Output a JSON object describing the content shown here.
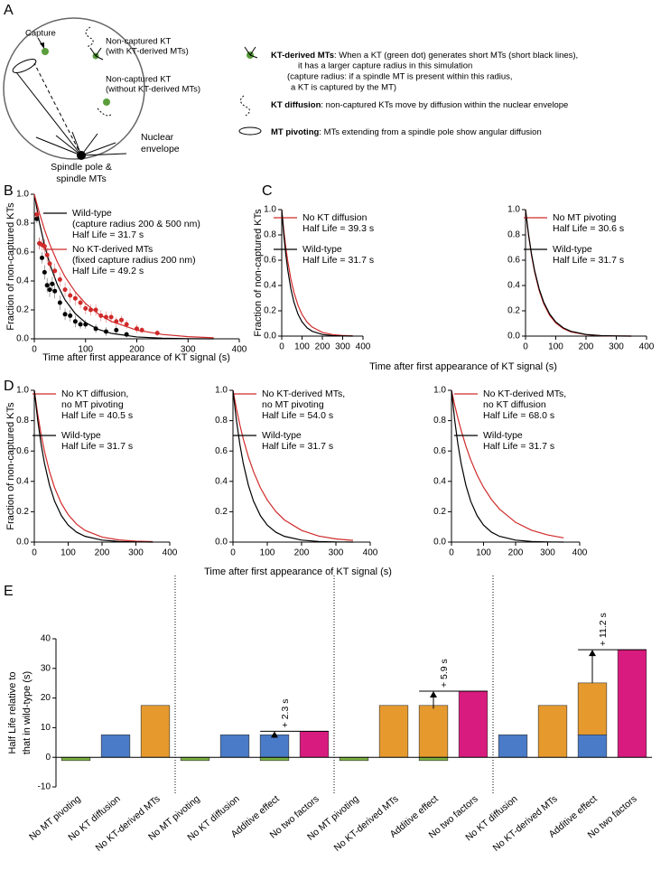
{
  "diagram": {
    "panel": "A",
    "capture": "Capture",
    "kt_with": [
      "Non-captured KT",
      "(with KT-derived MTs)"
    ],
    "kt_without": [
      "Non-captured KT",
      "(without KT-derived MTs)"
    ],
    "envelope": [
      "Nuclear",
      "envelope"
    ],
    "pole": [
      "Spindle pole &",
      "spindle MTs"
    ],
    "legend": [
      {
        "term": "KT-derived MTs",
        "lines": [
          ": When a KT (green dot) generates short MTs (short black lines),",
          "it has a larger capture radius in this simulation",
          "(capture radius: if a spindle MT is present within this radius,",
          "a KT is captured by the MT)"
        ]
      },
      {
        "term": "KT diffusion",
        "lines": [
          ": non-captured KTs move by diffusion within the nuclear envelope"
        ]
      },
      {
        "term": "MT pivoting",
        "lines": [
          ": MTs extending from a spindle pole show angular diffusion"
        ]
      }
    ]
  },
  "chart_data": [
    {
      "type": "line",
      "panel": "B",
      "xlabel": "Time after first appearance of KT signal (s)",
      "ylabel": "Fraction of non-captured KTs",
      "xlim": [
        0,
        400
      ],
      "ylim": [
        0,
        1
      ],
      "xticks": [
        0,
        100,
        200,
        300,
        400
      ],
      "yticks": [
        {
          "value": 0,
          "label": "0.0"
        },
        0.2,
        0.4,
        0.6,
        0.8,
        {
          "value": 1,
          "label": "1.0"
        }
      ],
      "x": [
        0,
        10,
        20,
        30,
        45,
        60,
        80,
        100,
        125,
        150,
        200,
        250,
        300,
        350
      ],
      "series": [
        {
          "name": "Wild-type",
          "detail": "(capture radius 200 & 500 nm)",
          "label": "Half Life = 31.7 s",
          "color": "#000000",
          "values": [
            1,
            0.804,
            0.646,
            0.519,
            0.374,
            0.269,
            0.174,
            0.112,
            0.065,
            0.038,
            0.013,
            0.004,
            0.001,
            0
          ],
          "points": {
            "x": [
              5,
              10,
              15,
              20,
              25,
              30,
              35,
              40,
              50,
              60,
              70,
              80,
              90,
              100,
              120,
              140,
              160,
              180
            ],
            "values": [
              0.83,
              0.66,
              0.56,
              0.46,
              0.37,
              0.34,
              0.38,
              0.33,
              0.25,
              0.17,
              0.16,
              0.12,
              0.1,
              0.1,
              0.07,
              0.05,
              0.06,
              0.03
            ],
            "errors": [
              0.03,
              0.04,
              0.04,
              0.05,
              0.05,
              0.05,
              0.05,
              0.05,
              0.05,
              0.04,
              0.04,
              0.04,
              0.03,
              0.03,
              0.03,
              0.03,
              0.03,
              0.02
            ]
          }
        },
        {
          "name": "No KT-derived MTs",
          "detail": "(fixed capture radius 200 nm)",
          "label": "Half Life = 49.2 s",
          "color": "#d02a2a",
          "values": [
            1,
            0.869,
            0.754,
            0.655,
            0.531,
            0.429,
            0.324,
            0.244,
            0.172,
            0.121,
            0.06,
            0.03,
            0.015,
            0.007
          ],
          "points": {
            "x": [
              5,
              10,
              15,
              20,
              25,
              30,
              40,
              50,
              60,
              70,
              80,
              90,
              100,
              110,
              120,
              130,
              140,
              150,
              160,
              170,
              180,
              200,
              210,
              240
            ],
            "values": [
              0.86,
              0.66,
              0.65,
              0.64,
              0.58,
              0.52,
              0.47,
              0.41,
              0.34,
              0.3,
              0.28,
              0.25,
              0.21,
              0.2,
              0.2,
              0.16,
              0.15,
              0.15,
              0.12,
              0.13,
              0.1,
              0.07,
              0.06,
              0.04
            ],
            "errors": [
              0.03,
              0.04,
              0.04,
              0.05,
              0.05,
              0.05,
              0.05,
              0.05,
              0.05,
              0.05,
              0.05,
              0.04,
              0.04,
              0.04,
              0.04,
              0.04,
              0.04,
              0.04,
              0.03,
              0.03,
              0.03,
              0.03,
              0.02,
              0.02
            ]
          }
        }
      ]
    },
    {
      "type": "line",
      "panel": "C",
      "xlabel": "Time after first appearance of KT signal (s)",
      "ylabel": "Fraction of non-captured KTs",
      "xlim": [
        0,
        400
      ],
      "ylim": [
        0,
        1
      ],
      "xticks": [
        0,
        100,
        200,
        300,
        400
      ],
      "yticks": [
        {
          "value": 0,
          "label": "0.0"
        },
        0.2,
        0.4,
        0.6,
        0.8,
        {
          "value": 1,
          "label": "1.0"
        }
      ],
      "x": [
        0,
        10,
        20,
        30,
        45,
        60,
        80,
        100,
        125,
        150,
        200,
        250,
        300,
        350
      ],
      "series": [
        {
          "name": "No KT diffusion",
          "label": "Half Life = 39.3 s",
          "color": "#d02a2a",
          "values": [
            1,
            0.838,
            0.703,
            0.589,
            0.452,
            0.347,
            0.244,
            0.171,
            0.11,
            0.071,
            0.029,
            0.012,
            0.005,
            0.002
          ]
        },
        {
          "name": "Wild-type",
          "label": "Half Life = 31.7 s",
          "color": "#000000",
          "values": [
            1,
            0.804,
            0.646,
            0.519,
            0.374,
            0.269,
            0.174,
            0.112,
            0.065,
            0.038,
            0.013,
            0.004,
            0.001,
            0
          ]
        }
      ]
    },
    {
      "type": "line",
      "xlim": [
        0,
        400
      ],
      "ylim": [
        0,
        1
      ],
      "xticks": [
        0,
        100,
        200,
        300,
        400
      ],
      "yticks": [
        {
          "value": 0,
          "label": "0.0"
        },
        0.2,
        0.4,
        0.6,
        0.8,
        {
          "value": 1,
          "label": "1.0"
        }
      ],
      "x": [
        0,
        10,
        20,
        30,
        45,
        60,
        80,
        100,
        125,
        150,
        200,
        250,
        300,
        350
      ],
      "series": [
        {
          "name": "No MT pivoting",
          "label": "Half Life = 30.6 s",
          "color": "#d02a2a",
          "values": [
            1,
            0.797,
            0.636,
            0.507,
            0.361,
            0.257,
            0.163,
            0.104,
            0.059,
            0.033,
            0.011,
            0.003,
            0.001,
            0
          ]
        },
        {
          "name": "Wild-type",
          "label": "Half Life = 31.7 s",
          "color": "#000000",
          "values": [
            1,
            0.804,
            0.646,
            0.519,
            0.374,
            0.269,
            0.174,
            0.112,
            0.065,
            0.038,
            0.013,
            0.004,
            0.001,
            0
          ]
        }
      ]
    },
    {
      "type": "line",
      "panel": "D",
      "xlabel": "Time after first appearance of KT signal (s)",
      "ylabel": "Fraction of non-captured KTs",
      "xlim": [
        0,
        400
      ],
      "ylim": [
        0,
        1
      ],
      "xticks": [
        0,
        100,
        200,
        300,
        400
      ],
      "yticks": [
        {
          "value": 0,
          "label": "0.0"
        },
        0.2,
        0.4,
        0.6,
        0.8,
        {
          "value": 1,
          "label": "1.0"
        }
      ],
      "x": [
        0,
        10,
        20,
        30,
        45,
        60,
        80,
        100,
        125,
        150,
        200,
        250,
        300,
        350
      ],
      "series": [
        {
          "name": "No KT diffusion,",
          "detail": "no MT pivoting",
          "label": "Half Life = 40.5 s",
          "color": "#d02a2a",
          "values": [
            1,
            0.843,
            0.71,
            0.598,
            0.463,
            0.358,
            0.254,
            0.181,
            0.118,
            0.077,
            0.033,
            0.014,
            0.006,
            0.003
          ]
        },
        {
          "name": "Wild-type",
          "label": "Half Life = 31.7 s",
          "color": "#000000",
          "values": [
            1,
            0.804,
            0.646,
            0.519,
            0.374,
            0.269,
            0.174,
            0.112,
            0.065,
            0.038,
            0.013,
            0.004,
            0.001,
            0
          ]
        }
      ]
    },
    {
      "type": "line",
      "xlim": [
        0,
        400
      ],
      "ylim": [
        0,
        1
      ],
      "xticks": [
        0,
        100,
        200,
        300,
        400
      ],
      "yticks": [
        {
          "value": 0,
          "label": "0.0"
        },
        0.2,
        0.4,
        0.6,
        0.8,
        {
          "value": 1,
          "label": "1.0"
        }
      ],
      "x": [
        0,
        10,
        20,
        30,
        45,
        60,
        80,
        100,
        125,
        150,
        200,
        250,
        300,
        350
      ],
      "series": [
        {
          "name": "No KT-derived MTs,",
          "detail": "no MT pivoting",
          "label": "Half Life = 54.0 s",
          "color": "#d02a2a",
          "values": [
            1,
            0.88,
            0.774,
            0.68,
            0.561,
            0.463,
            0.358,
            0.277,
            0.201,
            0.146,
            0.077,
            0.04,
            0.021,
            0.011
          ]
        },
        {
          "name": "Wild-type",
          "label": "Half Life = 31.7 s",
          "color": "#000000",
          "values": [
            1,
            0.804,
            0.646,
            0.519,
            0.374,
            0.269,
            0.174,
            0.112,
            0.065,
            0.038,
            0.013,
            0.004,
            0.001,
            0
          ]
        }
      ]
    },
    {
      "type": "line",
      "xlim": [
        0,
        400
      ],
      "ylim": [
        0,
        1
      ],
      "xticks": [
        0,
        100,
        200,
        300,
        400
      ],
      "yticks": [
        {
          "value": 0,
          "label": "0.0"
        },
        0.2,
        0.4,
        0.6,
        0.8,
        {
          "value": 1,
          "label": "1.0"
        }
      ],
      "x": [
        0,
        10,
        20,
        30,
        45,
        60,
        80,
        100,
        125,
        150,
        200,
        250,
        300,
        350
      ],
      "series": [
        {
          "name": "No KT-derived MTs,",
          "detail": "no KT diffusion",
          "label": "Half Life = 68.0 s",
          "color": "#d02a2a",
          "values": [
            1,
            0.903,
            0.816,
            0.737,
            0.632,
            0.542,
            0.442,
            0.361,
            0.28,
            0.217,
            0.13,
            0.078,
            0.047,
            0.028
          ]
        },
        {
          "name": "Wild-type",
          "label": "Half Life = 31.7 s",
          "color": "#000000",
          "values": [
            1,
            0.804,
            0.646,
            0.519,
            0.374,
            0.269,
            0.174,
            0.112,
            0.065,
            0.038,
            0.013,
            0.004,
            0.001,
            0
          ]
        }
      ]
    },
    {
      "type": "bar",
      "panel": "E",
      "ylabel": [
        "Half Life relative to",
        "that in wild-type (s)"
      ],
      "ylim": [
        -10,
        40
      ],
      "yticks": [
        -10,
        0,
        10,
        20,
        30,
        40
      ],
      "categories": [
        "No MT pivoting",
        "No KT diffusion",
        "No KT-derived MTs",
        "No MT pivoting",
        "No KT diffusion",
        "Additive effect",
        "No two factors",
        "No MT pivoting",
        "No KT-derived MTs",
        "Additive effect",
        "No two factors",
        "No KT diffusion",
        "No KT-derived MTs",
        "Additive effect",
        "No two factors"
      ],
      "series": [
        {
          "color": "#7cb342",
          "values": [
            -1.1,
            null,
            null,
            -1.1,
            null,
            -1.1,
            null,
            -1.1,
            null,
            -1.1,
            null,
            null,
            null,
            null,
            null
          ]
        },
        {
          "color": "#4a7bc8",
          "values": [
            null,
            7.6,
            null,
            null,
            7.6,
            7.6,
            null,
            null,
            null,
            null,
            null,
            7.6,
            null,
            7.6,
            null
          ]
        },
        {
          "color": "#e69a2e",
          "values": [
            null,
            null,
            17.5,
            null,
            null,
            null,
            null,
            null,
            17.5,
            17.5,
            null,
            null,
            17.5,
            17.5,
            null
          ]
        },
        {
          "color": "#d81b7e",
          "values": [
            null,
            null,
            null,
            null,
            null,
            null,
            8.8,
            null,
            null,
            null,
            22.3,
            null,
            null,
            null,
            36.3
          ]
        }
      ],
      "annotations": [
        "+ 2.3 s",
        "+ 5.9 s",
        "+ 11.2 s"
      ]
    }
  ]
}
